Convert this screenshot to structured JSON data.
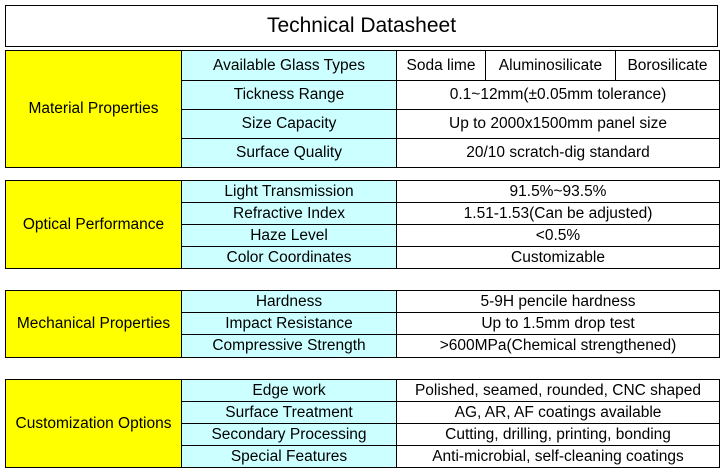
{
  "title": "Technical Datasheet",
  "sections": [
    {
      "category": "Material Properties",
      "rows": [
        {
          "property": "Available Glass Types",
          "values": [
            "Soda lime",
            "Aluminosilicate",
            "Borosilicate"
          ]
        },
        {
          "property": "Tickness Range",
          "value": "0.1~12mm(±0.05mm tolerance)"
        },
        {
          "property": "Size Capacity",
          "value": "Up to 2000x1500mm panel size"
        },
        {
          "property": "Surface Quality",
          "value": "20/10 scratch-dig standard"
        }
      ]
    },
    {
      "category": "Optical Performance",
      "rows": [
        {
          "property": "Light Transmission",
          "value": "91.5%~93.5%"
        },
        {
          "property": "Refractive Index",
          "value": "1.51-1.53(Can be adjusted)"
        },
        {
          "property": "Haze Level",
          "value": "<0.5%"
        },
        {
          "property": "Color Coordinates",
          "value": "Customizable"
        }
      ]
    },
    {
      "category": "Mechanical Properties",
      "rows": [
        {
          "property": "Hardness",
          "value": "5-9H pencile hardness"
        },
        {
          "property": "Impact Resistance",
          "value": "Up to 1.5mm drop test"
        },
        {
          "property": "Compressive Strength",
          "value": ">600MPa(Chemical strengthened)"
        }
      ]
    },
    {
      "category": "Customization Options",
      "rows": [
        {
          "property": "Edge work",
          "value": "Polished, seamed, rounded, CNC shaped"
        },
        {
          "property": "Surface Treatment",
          "value": "AG, AR, AF coatings available"
        },
        {
          "property": "Secondary Processing",
          "value": "Cutting, drilling, printing, bonding"
        },
        {
          "property": "Special Features",
          "value": "Anti-microbial, self-cleaning coatings"
        }
      ]
    }
  ],
  "colors": {
    "category_bg": "#ffff00",
    "property_bg": "#ccffff",
    "value_bg": "#ffffff",
    "border": "#000000"
  }
}
